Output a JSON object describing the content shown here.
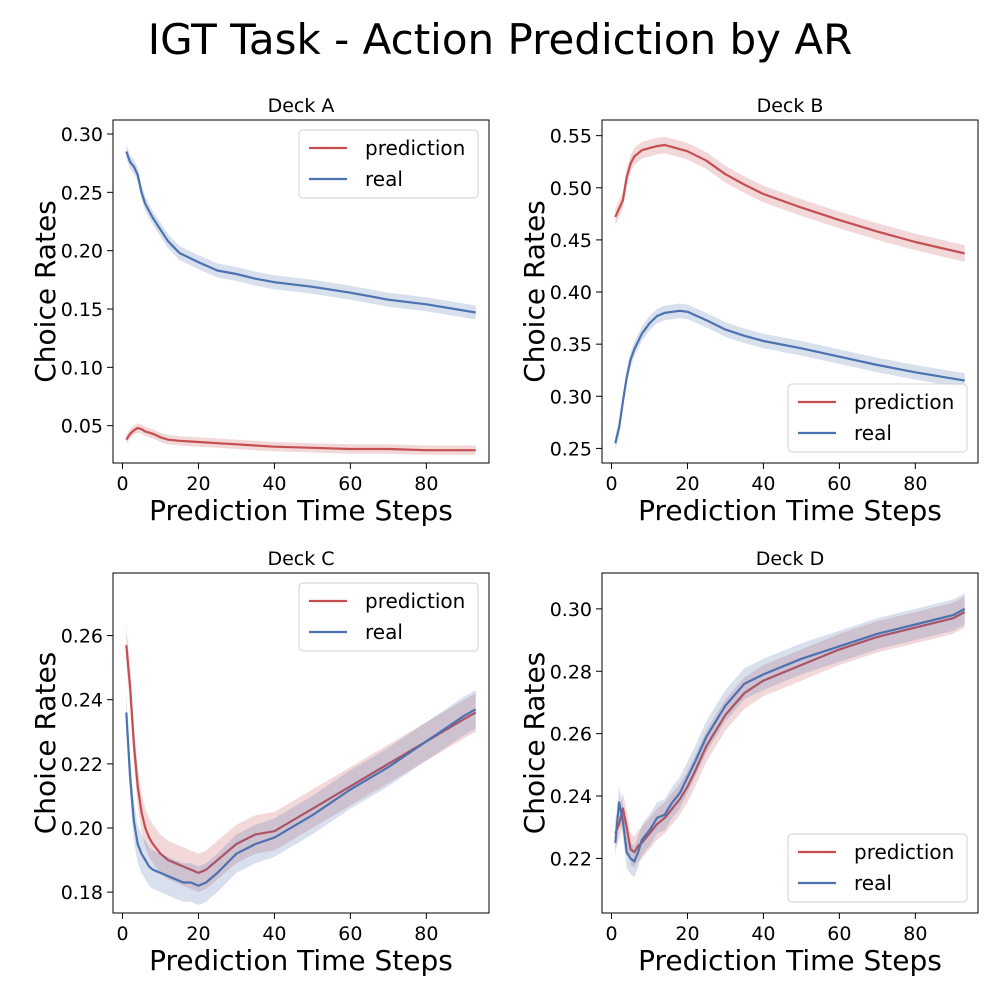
{
  "title": "IGT Task - Action Prediction by AR",
  "colors": {
    "prediction": "#c44e52",
    "real": "#4c72b0",
    "axis": "#000000"
  },
  "chart_data": [
    {
      "type": "line",
      "title": "Deck A",
      "xlabel": "Prediction Time Steps",
      "ylabel": "Choice Rates",
      "xlim": [
        -2.5,
        96.5
      ],
      "ylim": [
        0.018,
        0.312
      ],
      "xticks": [
        "0",
        "20",
        "40",
        "60",
        "80"
      ],
      "yticks": [
        "0.05",
        "0.10",
        "0.15",
        "0.20",
        "0.25",
        "0.30"
      ],
      "legend_position": "top-right",
      "series": [
        {
          "name": "prediction",
          "color": "#c44e52",
          "x": [
            1,
            2,
            3,
            4,
            5,
            6,
            8,
            10,
            12,
            15,
            20,
            25,
            30,
            35,
            40,
            50,
            60,
            70,
            80,
            93
          ],
          "y": [
            0.038,
            0.043,
            0.046,
            0.048,
            0.047,
            0.045,
            0.043,
            0.04,
            0.038,
            0.037,
            0.036,
            0.035,
            0.034,
            0.033,
            0.032,
            0.031,
            0.03,
            0.03,
            0.029,
            0.029
          ],
          "band": 0.004
        },
        {
          "name": "real",
          "color": "#4c72b0",
          "x": [
            1,
            2,
            3,
            4,
            5,
            6,
            8,
            10,
            12,
            15,
            20,
            25,
            30,
            35,
            40,
            50,
            60,
            70,
            80,
            93
          ],
          "y": [
            0.285,
            0.276,
            0.272,
            0.265,
            0.25,
            0.24,
            0.228,
            0.218,
            0.208,
            0.198,
            0.19,
            0.183,
            0.18,
            0.176,
            0.173,
            0.169,
            0.164,
            0.158,
            0.154,
            0.147
          ],
          "band": 0.006
        }
      ]
    },
    {
      "type": "line",
      "title": "Deck B",
      "xlabel": "Prediction Time Steps",
      "ylabel": "Choice Rates",
      "xlim": [
        -2.5,
        96.5
      ],
      "ylim": [
        0.236,
        0.565
      ],
      "xticks": [
        "0",
        "20",
        "40",
        "60",
        "80"
      ],
      "yticks": [
        "0.25",
        "0.30",
        "0.35",
        "0.40",
        "0.45",
        "0.50",
        "0.55"
      ],
      "legend_position": "bottom-right",
      "series": [
        {
          "name": "prediction",
          "color": "#c44e52",
          "x": [
            1,
            2,
            3,
            4,
            5,
            6,
            8,
            10,
            12,
            14,
            16,
            18,
            20,
            25,
            30,
            35,
            40,
            50,
            60,
            70,
            80,
            93
          ],
          "y": [
            0.472,
            0.48,
            0.488,
            0.51,
            0.523,
            0.53,
            0.536,
            0.538,
            0.54,
            0.541,
            0.539,
            0.537,
            0.535,
            0.526,
            0.513,
            0.503,
            0.494,
            0.481,
            0.469,
            0.458,
            0.448,
            0.437
          ],
          "band": 0.008
        },
        {
          "name": "real",
          "color": "#4c72b0",
          "x": [
            1,
            2,
            3,
            4,
            5,
            6,
            8,
            10,
            12,
            14,
            16,
            18,
            20,
            25,
            30,
            35,
            40,
            50,
            60,
            70,
            80,
            93
          ],
          "y": [
            0.255,
            0.27,
            0.295,
            0.318,
            0.335,
            0.345,
            0.36,
            0.37,
            0.377,
            0.38,
            0.381,
            0.382,
            0.381,
            0.373,
            0.364,
            0.358,
            0.353,
            0.346,
            0.338,
            0.33,
            0.323,
            0.315
          ],
          "band": 0.007
        }
      ]
    },
    {
      "type": "line",
      "title": "Deck C",
      "xlabel": "Prediction Time Steps",
      "ylabel": "Choice Rates",
      "xlim": [
        -2.5,
        96.5
      ],
      "ylim": [
        0.1735,
        0.2795
      ],
      "xticks": [
        "0",
        "20",
        "40",
        "60",
        "80"
      ],
      "yticks": [
        "0.18",
        "0.20",
        "0.22",
        "0.24",
        "0.26"
      ],
      "legend_position": "top-right",
      "series": [
        {
          "name": "prediction",
          "color": "#c44e52",
          "x": [
            1,
            2,
            3,
            4,
            5,
            6,
            7,
            8,
            10,
            12,
            14,
            16,
            18,
            20,
            22,
            25,
            30,
            35,
            40,
            50,
            60,
            70,
            80,
            90,
            93
          ],
          "y": [
            0.257,
            0.244,
            0.226,
            0.213,
            0.205,
            0.2,
            0.197,
            0.195,
            0.192,
            0.19,
            0.189,
            0.188,
            0.187,
            0.186,
            0.187,
            0.19,
            0.195,
            0.198,
            0.199,
            0.206,
            0.213,
            0.22,
            0.227,
            0.234,
            0.236
          ],
          "band": 0.006
        },
        {
          "name": "real",
          "color": "#4c72b0",
          "x": [
            1,
            2,
            3,
            4,
            5,
            6,
            7,
            8,
            10,
            12,
            14,
            16,
            18,
            20,
            22,
            25,
            30,
            35,
            40,
            50,
            60,
            70,
            80,
            90,
            93
          ],
          "y": [
            0.236,
            0.216,
            0.202,
            0.195,
            0.192,
            0.19,
            0.188,
            0.187,
            0.186,
            0.185,
            0.184,
            0.183,
            0.183,
            0.182,
            0.183,
            0.186,
            0.192,
            0.195,
            0.197,
            0.204,
            0.212,
            0.219,
            0.227,
            0.235,
            0.237
          ],
          "band": 0.006
        }
      ]
    },
    {
      "type": "line",
      "title": "Deck D",
      "xlabel": "Prediction Time Steps",
      "ylabel": "Choice Rates",
      "xlim": [
        -2.5,
        96.5
      ],
      "ylim": [
        0.2025,
        0.3115
      ],
      "xticks": [
        "0",
        "20",
        "40",
        "60",
        "80"
      ],
      "yticks": [
        "0.22",
        "0.24",
        "0.26",
        "0.28",
        "0.30"
      ],
      "legend_position": "bottom-right",
      "series": [
        {
          "name": "prediction",
          "color": "#c44e52",
          "x": [
            1,
            2,
            3,
            4,
            5,
            6,
            7,
            8,
            10,
            12,
            14,
            16,
            18,
            20,
            22,
            25,
            30,
            35,
            40,
            50,
            60,
            70,
            80,
            90,
            93
          ],
          "y": [
            0.228,
            0.231,
            0.236,
            0.23,
            0.223,
            0.222,
            0.224,
            0.225,
            0.228,
            0.231,
            0.233,
            0.236,
            0.239,
            0.243,
            0.248,
            0.256,
            0.266,
            0.273,
            0.277,
            0.282,
            0.287,
            0.291,
            0.294,
            0.297,
            0.299
          ],
          "band": 0.005
        },
        {
          "name": "real",
          "color": "#4c72b0",
          "x": [
            1,
            2,
            3,
            4,
            5,
            6,
            7,
            8,
            10,
            12,
            14,
            16,
            18,
            20,
            22,
            25,
            30,
            35,
            40,
            50,
            60,
            70,
            80,
            90,
            93
          ],
          "y": [
            0.225,
            0.238,
            0.232,
            0.222,
            0.22,
            0.219,
            0.222,
            0.226,
            0.229,
            0.233,
            0.234,
            0.238,
            0.241,
            0.246,
            0.251,
            0.259,
            0.269,
            0.276,
            0.279,
            0.284,
            0.288,
            0.292,
            0.295,
            0.298,
            0.3
          ],
          "band": 0.005
        }
      ]
    }
  ]
}
